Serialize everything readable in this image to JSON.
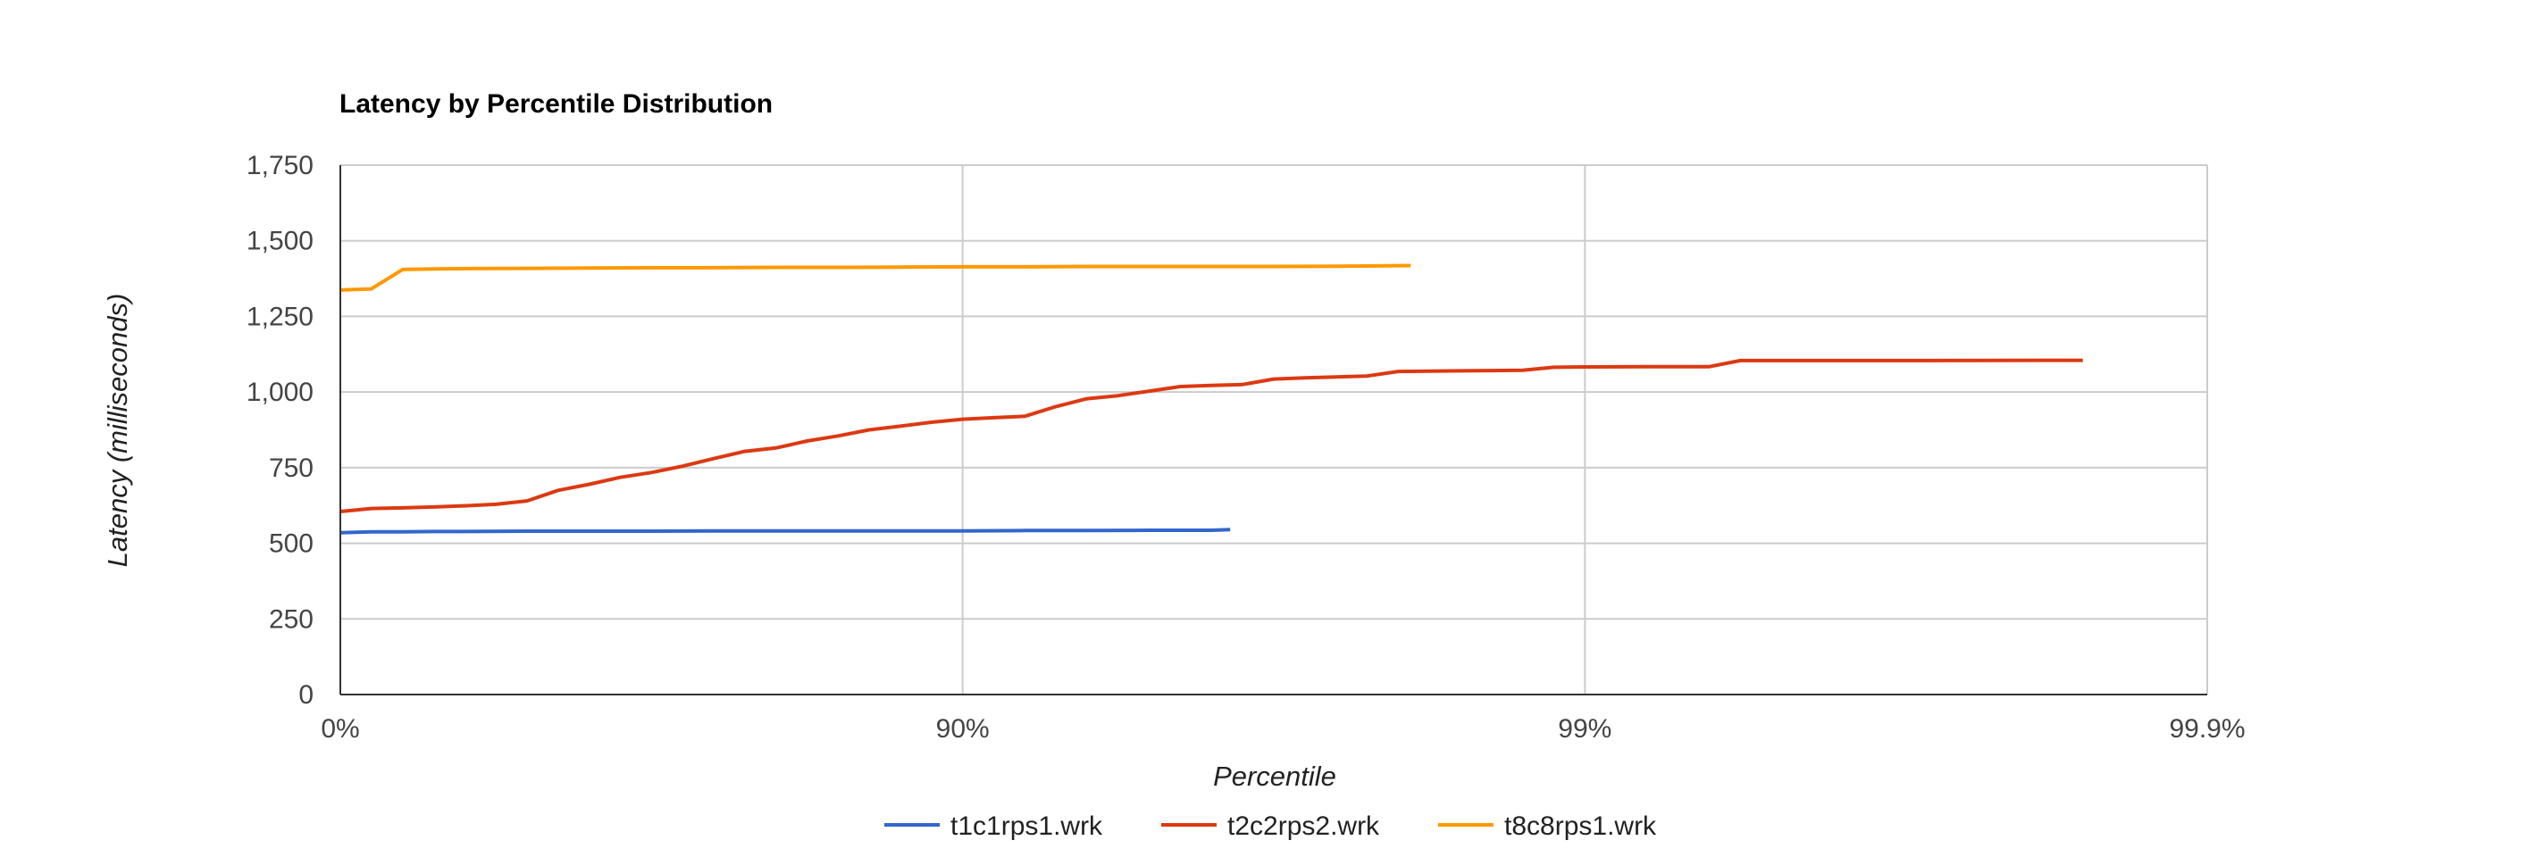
{
  "chart_data": {
    "type": "line",
    "title": "Latency by Percentile Distribution",
    "xlabel": "Percentile",
    "ylabel": "Latency (milliseconds)",
    "x_scale": "log-percentile",
    "x_ticks": [
      "0%",
      "90%",
      "99%",
      "99.9%"
    ],
    "y_ticks": [
      "0",
      "250",
      "500",
      "750",
      "1,000",
      "1,250",
      "1,500",
      "1,750"
    ],
    "ylim": [
      0,
      1750
    ],
    "xlim_decades": [
      0,
      3
    ],
    "grid": true,
    "legend_position": "bottom",
    "series": [
      {
        "name": "t1c1rps1.wrk",
        "color": "#3366cc",
        "points": [
          [
            0.0,
            535
          ],
          [
            0.05,
            538
          ],
          [
            0.1,
            538
          ],
          [
            0.15,
            539
          ],
          [
            0.2,
            539
          ],
          [
            0.3,
            540
          ],
          [
            0.4,
            540
          ],
          [
            0.5,
            540
          ],
          [
            0.6,
            541
          ],
          [
            0.7,
            541
          ],
          [
            0.8,
            541
          ],
          [
            0.9,
            541
          ],
          [
            1.0,
            541
          ],
          [
            1.1,
            542
          ],
          [
            1.2,
            542
          ],
          [
            1.3,
            543
          ],
          [
            1.4,
            543
          ],
          [
            1.43,
            545
          ]
        ]
      },
      {
        "name": "t2c2rps2.wrk",
        "color": "#dc3912",
        "points": [
          [
            0.0,
            605
          ],
          [
            0.05,
            615
          ],
          [
            0.1,
            617
          ],
          [
            0.15,
            620
          ],
          [
            0.2,
            624
          ],
          [
            0.25,
            629
          ],
          [
            0.3,
            640
          ],
          [
            0.35,
            675
          ],
          [
            0.4,
            695
          ],
          [
            0.45,
            718
          ],
          [
            0.5,
            734
          ],
          [
            0.55,
            755
          ],
          [
            0.6,
            780
          ],
          [
            0.65,
            804
          ],
          [
            0.7,
            815
          ],
          [
            0.75,
            838
          ],
          [
            0.8,
            855
          ],
          [
            0.85,
            875
          ],
          [
            0.9,
            887
          ],
          [
            0.95,
            900
          ],
          [
            1.0,
            910
          ],
          [
            1.05,
            915
          ],
          [
            1.1,
            920
          ],
          [
            1.15,
            952
          ],
          [
            1.2,
            978
          ],
          [
            1.25,
            988
          ],
          [
            1.3,
            1003
          ],
          [
            1.35,
            1018
          ],
          [
            1.4,
            1022
          ],
          [
            1.45,
            1025
          ],
          [
            1.5,
            1043
          ],
          [
            1.55,
            1047
          ],
          [
            1.6,
            1050
          ],
          [
            1.65,
            1053
          ],
          [
            1.7,
            1068
          ],
          [
            1.75,
            1069
          ],
          [
            1.8,
            1070
          ],
          [
            1.85,
            1071
          ],
          [
            1.9,
            1072
          ],
          [
            1.95,
            1082
          ],
          [
            2.0,
            1083
          ],
          [
            2.1,
            1084
          ],
          [
            2.2,
            1084
          ],
          [
            2.25,
            1104
          ],
          [
            2.35,
            1104
          ],
          [
            2.45,
            1104
          ],
          [
            2.55,
            1104
          ],
          [
            2.8,
            1105
          ]
        ]
      },
      {
        "name": "t8c8rps1.wrk",
        "color": "#ff9900",
        "points": [
          [
            0.0,
            1337
          ],
          [
            0.05,
            1341
          ],
          [
            0.1,
            1405
          ],
          [
            0.15,
            1407
          ],
          [
            0.2,
            1408
          ],
          [
            0.3,
            1409
          ],
          [
            0.4,
            1410
          ],
          [
            0.5,
            1411
          ],
          [
            0.6,
            1411
          ],
          [
            0.7,
            1412
          ],
          [
            0.8,
            1412
          ],
          [
            0.9,
            1413
          ],
          [
            1.0,
            1414
          ],
          [
            1.1,
            1414
          ],
          [
            1.2,
            1415
          ],
          [
            1.3,
            1415
          ],
          [
            1.4,
            1415
          ],
          [
            1.5,
            1415
          ],
          [
            1.6,
            1416
          ],
          [
            1.72,
            1418
          ]
        ]
      }
    ]
  }
}
